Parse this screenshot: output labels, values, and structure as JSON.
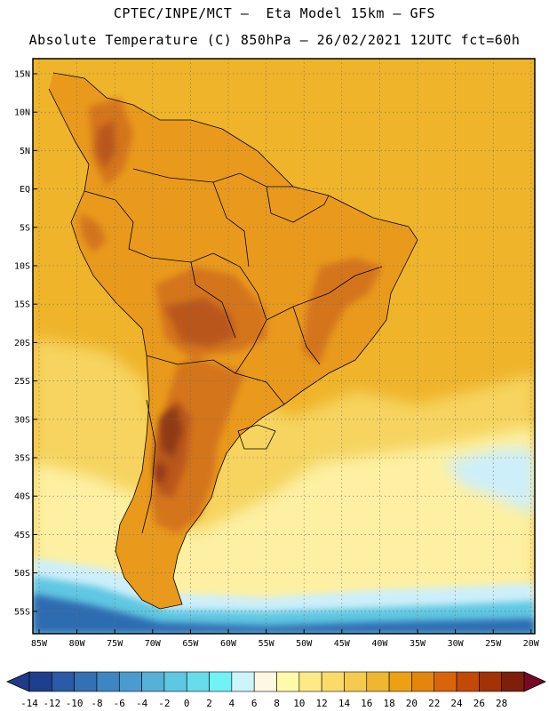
{
  "title_line1": "CPTEC/INPE/MCT –  Eta Model 15km – GFS",
  "title_line2": "Absolute Temperature (C) 850hPa – 26/02/2021 12UTC fct=60h",
  "lat_labels": [
    "15N",
    "10N",
    "5N",
    "EQ",
    "5S",
    "10S",
    "15S",
    "20S",
    "25S",
    "30S",
    "35S",
    "40S",
    "45S",
    "50S",
    "55S"
  ],
  "lon_labels": [
    "85W",
    "80W",
    "75W",
    "70W",
    "65W",
    "60W",
    "55W",
    "50W",
    "45W",
    "40W",
    "35W",
    "30W",
    "25W",
    "20W"
  ],
  "colorbar": {
    "labels": [
      "-14",
      "-12",
      "-10",
      "-8",
      "-6",
      "-4",
      "-2",
      "0",
      "2",
      "4",
      "6",
      "8",
      "10",
      "12",
      "14",
      "16",
      "18",
      "20",
      "22",
      "24",
      "26",
      "28"
    ],
    "colors": [
      "#1f3f8c",
      "#2b5aa6",
      "#3470b4",
      "#3d86c2",
      "#4a9ccf",
      "#56b0d8",
      "#5ec7e2",
      "#66dcec",
      "#70f2f7",
      "#cef4fb",
      "#fff8e0",
      "#fffaa8",
      "#fdea86",
      "#f9dc68",
      "#f4cb4e",
      "#efb630",
      "#eca112",
      "#e4860c",
      "#d8650a",
      "#c24a08",
      "#a33206",
      "#7e1f0a"
    ],
    "end_low_color": "#1f3a88",
    "end_high_color": "#760a26"
  },
  "palette": {
    "ocean_warm": "#efb42a",
    "ocean_mid": "#f6d45e",
    "ocean_cool": "#fdf0a2",
    "cold_light": "#cdeffa",
    "cold_mid": "#60c7e2",
    "cold_dark": "#2e6cb2",
    "land_warm": "#e99a1c",
    "land_hot": "#d4741a",
    "land_hotter": "#b9561a",
    "land_hottest": "#8f3a12"
  }
}
